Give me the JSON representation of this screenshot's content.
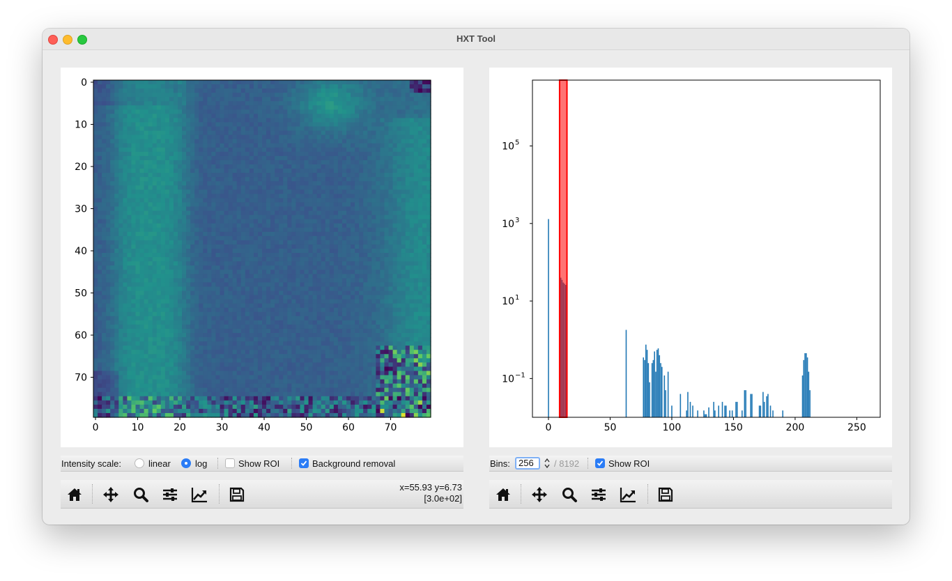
{
  "window": {
    "title": "HXT Tool"
  },
  "image_panel": {
    "options": {
      "intensity_label": "Intensity scale:",
      "linear_label": "linear",
      "log_label": "log",
      "scale_selected": "log",
      "show_roi_label": "Show ROI",
      "show_roi_checked": false,
      "background_label": "Background removal",
      "background_checked": true
    },
    "toolbar": {
      "icons": [
        "home-icon",
        "move-icon",
        "zoom-icon",
        "sliders-icon",
        "trend-icon",
        "save-icon"
      ],
      "coords_line1": "x=55.93 y=6.73",
      "coords_line2": "[3.0e+02]"
    },
    "axes": {
      "x_ticks": [
        "0",
        "10",
        "20",
        "30",
        "40",
        "50",
        "60",
        "70"
      ],
      "y_ticks": [
        "0",
        "10",
        "20",
        "30",
        "40",
        "50",
        "60",
        "70"
      ],
      "colormap": "viridis"
    }
  },
  "hist_panel": {
    "options": {
      "bins_label": "Bins:",
      "bins_value": "256",
      "bins_max": "/ 8192",
      "show_roi_label": "Show ROI",
      "show_roi_checked": true
    },
    "toolbar": {
      "icons": [
        "home-icon",
        "move-icon",
        "zoom-icon",
        "sliders-icon",
        "trend-icon",
        "save-icon"
      ]
    }
  },
  "chart_data": {
    "type": "bar",
    "title": "",
    "xlabel": "",
    "ylabel": "",
    "x_ticks": [
      "0",
      "50",
      "100",
      "150",
      "200",
      "250"
    ],
    "y_ticks": [
      {
        "base": "10",
        "exp": "−1"
      },
      {
        "base": "10",
        "exp": "1"
      },
      {
        "base": "10",
        "exp": "3"
      },
      {
        "base": "10",
        "exp": "5"
      }
    ],
    "xlim": [
      -13,
      269
    ],
    "ylim": [
      0.01,
      5000000
    ],
    "yscale": "log",
    "bar_color": "#1f77b4",
    "roi_color": "#ff0000",
    "roi_range": [
      9,
      15
    ],
    "x": [
      0,
      9,
      10,
      11,
      12,
      13,
      14,
      63,
      77,
      78,
      79,
      80,
      81,
      82,
      84,
      85,
      86,
      87,
      88,
      89,
      90,
      91,
      92,
      94,
      95,
      97,
      100,
      107,
      112,
      113,
      115,
      117,
      121,
      126,
      127,
      128,
      130,
      134,
      135,
      138,
      141,
      143,
      144,
      147,
      149,
      152,
      153,
      157,
      159,
      160,
      164,
      165,
      171,
      172,
      174,
      175,
      177,
      178,
      180,
      182,
      190,
      206,
      207,
      208,
      209,
      210,
      211,
      212
    ],
    "values": [
      1300,
      45,
      40,
      35,
      30,
      28,
      26,
      1.8,
      0.35,
      0.3,
      0.75,
      0.55,
      0.25,
      0.08,
      0.25,
      0.3,
      0.5,
      0.15,
      0.55,
      0.6,
      0.4,
      0.25,
      0.2,
      0.12,
      0.05,
      0.15,
      0.02,
      0.04,
      0.015,
      0.045,
      0.025,
      0.02,
      0.015,
      0.015,
      0.012,
      0.012,
      0.018,
      0.025,
      0.015,
      0.02,
      0.025,
      0.02,
      0.02,
      0.015,
      0.015,
      0.025,
      0.025,
      0.015,
      0.05,
      0.05,
      0.04,
      0.04,
      0.02,
      0.02,
      0.045,
      0.025,
      0.035,
      0.04,
      0.02,
      0.015,
      0.015,
      0.12,
      0.3,
      0.45,
      0.45,
      0.35,
      0.15,
      0.05
    ]
  }
}
